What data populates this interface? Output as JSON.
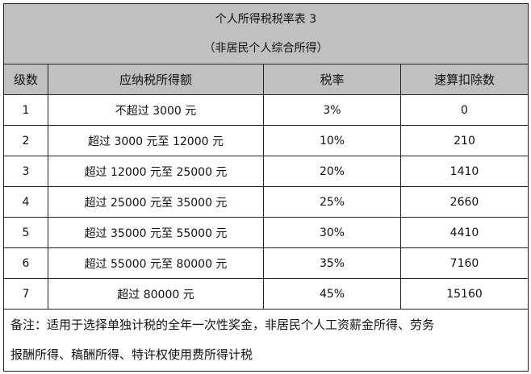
{
  "title": "个人所得税税率表 3",
  "subtitle": "（非居民个人综合所得）",
  "headers": [
    "级数",
    "应纳税所得额",
    "税率",
    "速算扣除数"
  ],
  "rows": [
    [
      "1",
      "不超过 3000 元",
      "3%",
      "0"
    ],
    [
      "2",
      "超过 3000 元至 12000 元",
      "10%",
      "210"
    ],
    [
      "3",
      "超过 12000 元至 25000 元",
      "20%",
      "1410"
    ],
    [
      "4",
      "超过 25000 元至 35000 元",
      "25%",
      "2660"
    ],
    [
      "5",
      "超过 35000 元至 55000 元",
      "30%",
      "4410"
    ],
    [
      "6",
      "超过 55000 元至 80000 元",
      "35%",
      "7160"
    ],
    [
      "7",
      "超过 80000 元",
      "45%",
      "15160"
    ]
  ],
  "note_line1": "备注：适用于选择单独计税的全年一次性奖金，非居民个人工资薪金所得、劳务",
  "note_line2": "报酬所得、稿酬所得、特许权使用费所得计税"
}
